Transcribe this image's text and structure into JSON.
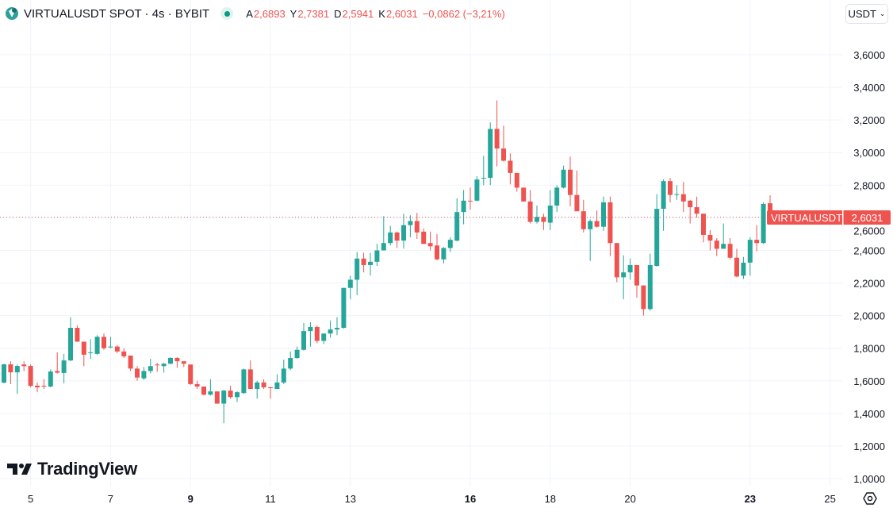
{
  "header": {
    "title": "VIRTUALUSDT SPOT · 4s · BYBIT",
    "ohlc": [
      {
        "key": "A",
        "value": "2,6893"
      },
      {
        "key": "Y",
        "value": "2,7381"
      },
      {
        "key": "D",
        "value": "2,5941"
      },
      {
        "key": "K",
        "value": "2,6031"
      }
    ],
    "change": "−0,0862 (−3,21%)",
    "status_icon": "market-open-dot"
  },
  "currency_select": {
    "value": "USDT",
    "icon": "chevron-down-icon"
  },
  "brand": {
    "name": "TradingView"
  },
  "price_label": {
    "symbol": "VIRTUALUSDT",
    "value": "2,6031"
  },
  "settings_icon": "gear-icon",
  "colors": {
    "up": "#26a69a",
    "down": "#ef5350",
    "grid": "#f0f3fa"
  },
  "chart_data": {
    "type": "candlestick",
    "title": "VIRTUALUSDT SPOT · 4s · BYBIT",
    "interval": "4h",
    "ylim": [
      1.0,
      3.6
    ],
    "y_ticks": [
      {
        "value": 3.6,
        "label": "3,6000"
      },
      {
        "value": 3.4,
        "label": "3,4000"
      },
      {
        "value": 3.2,
        "label": "3,2000"
      },
      {
        "value": 3.0,
        "label": "3,0000"
      },
      {
        "value": 2.8,
        "label": "2,8000"
      },
      {
        "value": 2.6,
        "label": "2,6000"
      },
      {
        "value": 2.4,
        "label": "2,4000"
      },
      {
        "value": 2.2,
        "label": "2,2000"
      },
      {
        "value": 2.0,
        "label": "2,0000"
      },
      {
        "value": 1.8,
        "label": "1,8000"
      },
      {
        "value": 1.6,
        "label": "1,6000"
      },
      {
        "value": 1.4,
        "label": "1,4000"
      },
      {
        "value": 1.2,
        "label": "1,2000"
      },
      {
        "value": 1.0,
        "label": "1,0000"
      }
    ],
    "x_ticks": [
      {
        "label": "5",
        "index": 4,
        "bold": false
      },
      {
        "label": "7",
        "index": 16,
        "bold": false
      },
      {
        "label": "9",
        "index": 28,
        "bold": true
      },
      {
        "label": "11",
        "index": 40,
        "bold": false
      },
      {
        "label": "13",
        "index": 52,
        "bold": false
      },
      {
        "label": "16",
        "index": 70,
        "bold": true
      },
      {
        "label": "18",
        "index": 82,
        "bold": false
      },
      {
        "label": "20",
        "index": 94,
        "bold": false
      },
      {
        "label": "23",
        "index": 112,
        "bold": true
      },
      {
        "label": "25",
        "index": 124,
        "bold": false
      }
    ],
    "last_price": 2.6031,
    "candles_format": [
      "open",
      "high",
      "low",
      "close"
    ],
    "candles": [
      [
        1.589,
        1.705,
        1.585,
        1.701
      ],
      [
        1.701,
        1.72,
        1.58,
        1.652
      ],
      [
        1.652,
        1.7,
        1.52,
        1.691
      ],
      [
        1.7,
        1.72,
        1.66,
        1.69
      ],
      [
        1.691,
        1.7,
        1.56,
        1.569
      ],
      [
        1.57,
        1.59,
        1.53,
        1.56
      ],
      [
        1.57,
        1.61,
        1.55,
        1.565
      ],
      [
        1.565,
        1.67,
        1.56,
        1.657
      ],
      [
        1.66,
        1.775,
        1.645,
        1.65
      ],
      [
        1.648,
        1.765,
        1.585,
        1.725
      ],
      [
        1.725,
        1.99,
        1.72,
        1.925
      ],
      [
        1.925,
        1.94,
        1.84,
        1.84
      ],
      [
        1.84,
        1.84,
        1.69,
        1.76
      ],
      [
        1.77,
        1.855,
        1.735,
        1.775
      ],
      [
        1.765,
        1.88,
        1.76,
        1.87
      ],
      [
        1.87,
        1.89,
        1.79,
        1.8
      ],
      [
        1.805,
        1.87,
        1.8,
        1.81
      ],
      [
        1.81,
        1.82,
        1.77,
        1.78
      ],
      [
        1.78,
        1.8,
        1.74,
        1.75
      ],
      [
        1.755,
        1.755,
        1.66,
        1.675
      ],
      [
        1.675,
        1.69,
        1.6,
        1.62
      ],
      [
        1.615,
        1.685,
        1.605,
        1.66
      ],
      [
        1.66,
        1.735,
        1.645,
        1.69
      ],
      [
        1.7,
        1.71,
        1.655,
        1.695
      ],
      [
        1.69,
        1.71,
        1.65,
        1.705
      ],
      [
        1.705,
        1.745,
        1.7,
        1.74
      ],
      [
        1.74,
        1.745,
        1.68,
        1.72
      ],
      [
        1.72,
        1.72,
        1.685,
        1.705
      ],
      [
        1.7,
        1.7,
        1.575,
        1.58
      ],
      [
        1.58,
        1.6,
        1.55,
        1.565
      ],
      [
        1.565,
        1.565,
        1.51,
        1.515
      ],
      [
        1.515,
        1.61,
        1.51,
        1.535
      ],
      [
        1.535,
        1.535,
        1.46,
        1.46
      ],
      [
        1.46,
        1.545,
        1.34,
        1.54
      ],
      [
        1.54,
        1.57,
        1.49,
        1.5
      ],
      [
        1.5,
        1.535,
        1.47,
        1.53
      ],
      [
        1.525,
        1.675,
        1.52,
        1.67
      ],
      [
        1.67,
        1.725,
        1.55,
        1.55
      ],
      [
        1.55,
        1.6,
        1.49,
        1.59
      ],
      [
        1.59,
        1.61,
        1.55,
        1.56
      ],
      [
        1.56,
        1.565,
        1.49,
        1.555
      ],
      [
        1.55,
        1.64,
        1.55,
        1.59
      ],
      [
        1.59,
        1.73,
        1.58,
        1.675
      ],
      [
        1.675,
        1.78,
        1.665,
        1.74
      ],
      [
        1.74,
        1.81,
        1.735,
        1.79
      ],
      [
        1.79,
        1.955,
        1.785,
        1.905
      ],
      [
        1.905,
        1.96,
        1.81,
        1.93
      ],
      [
        1.93,
        1.94,
        1.83,
        1.845
      ],
      [
        1.845,
        1.89,
        1.825,
        1.89
      ],
      [
        1.89,
        1.97,
        1.865,
        1.915
      ],
      [
        1.915,
        1.99,
        1.88,
        1.925
      ],
      [
        1.925,
        2.17,
        1.92,
        2.17
      ],
      [
        2.17,
        2.245,
        2.1,
        2.22
      ],
      [
        2.22,
        2.39,
        2.125,
        2.35
      ],
      [
        2.35,
        2.385,
        2.265,
        2.31
      ],
      [
        2.31,
        2.385,
        2.245,
        2.33
      ],
      [
        2.33,
        2.44,
        2.305,
        2.4
      ],
      [
        2.4,
        2.61,
        2.4,
        2.445
      ],
      [
        2.445,
        2.55,
        2.43,
        2.51
      ],
      [
        2.51,
        2.515,
        2.415,
        2.46
      ],
      [
        2.46,
        2.625,
        2.41,
        2.555
      ],
      [
        2.555,
        2.615,
        2.48,
        2.58
      ],
      [
        2.58,
        2.63,
        2.47,
        2.51
      ],
      [
        2.515,
        2.535,
        2.44,
        2.44
      ],
      [
        2.445,
        2.515,
        2.4,
        2.425
      ],
      [
        2.43,
        2.5,
        2.34,
        2.345
      ],
      [
        2.345,
        2.42,
        2.32,
        2.415
      ],
      [
        2.415,
        2.48,
        2.39,
        2.465
      ],
      [
        2.46,
        2.72,
        2.455,
        2.635
      ],
      [
        2.635,
        2.77,
        2.56,
        2.705
      ],
      [
        2.705,
        2.785,
        2.65,
        2.7
      ],
      [
        2.705,
        2.855,
        2.7,
        2.835
      ],
      [
        2.84,
        2.98,
        2.8,
        2.845
      ],
      [
        2.845,
        3.185,
        2.8,
        3.145
      ],
      [
        3.145,
        3.32,
        2.915,
        3.025
      ],
      [
        3.025,
        3.165,
        2.945,
        2.95
      ],
      [
        2.95,
        2.995,
        2.805,
        2.875
      ],
      [
        2.875,
        2.875,
        2.76,
        2.785
      ],
      [
        2.785,
        2.785,
        2.7,
        2.7
      ],
      [
        2.7,
        2.77,
        2.565,
        2.575
      ],
      [
        2.575,
        2.675,
        2.565,
        2.605
      ],
      [
        2.605,
        2.625,
        2.525,
        2.575
      ],
      [
        2.57,
        2.77,
        2.525,
        2.675
      ],
      [
        2.675,
        2.8,
        2.635,
        2.785
      ],
      [
        2.785,
        2.92,
        2.78,
        2.895
      ],
      [
        2.895,
        2.975,
        2.67,
        2.74
      ],
      [
        2.74,
        2.89,
        2.64,
        2.64
      ],
      [
        2.64,
        2.71,
        2.51,
        2.53
      ],
      [
        2.53,
        2.59,
        2.335,
        2.58
      ],
      [
        2.58,
        2.645,
        2.54,
        2.545
      ],
      [
        2.545,
        2.73,
        2.52,
        2.695
      ],
      [
        2.695,
        2.73,
        2.365,
        2.445
      ],
      [
        2.445,
        2.445,
        2.205,
        2.235
      ],
      [
        2.235,
        2.37,
        2.1,
        2.265
      ],
      [
        2.265,
        2.35,
        2.22,
        2.31
      ],
      [
        2.31,
        2.31,
        2.11,
        2.185
      ],
      [
        2.185,
        2.185,
        2.0,
        2.04
      ],
      [
        2.04,
        2.38,
        2.03,
        2.31
      ],
      [
        2.305,
        2.745,
        2.3,
        2.655
      ],
      [
        2.655,
        2.835,
        2.52,
        2.825
      ],
      [
        2.825,
        2.845,
        2.695,
        2.74
      ],
      [
        2.74,
        2.8,
        2.71,
        2.745
      ],
      [
        2.745,
        2.82,
        2.635,
        2.7
      ],
      [
        2.705,
        2.71,
        2.565,
        2.665
      ],
      [
        2.665,
        2.73,
        2.6,
        2.625
      ],
      [
        2.625,
        2.625,
        2.45,
        2.495
      ],
      [
        2.495,
        2.525,
        2.4,
        2.46
      ],
      [
        2.46,
        2.475,
        2.365,
        2.41
      ],
      [
        2.41,
        2.565,
        2.41,
        2.44
      ],
      [
        2.44,
        2.475,
        2.345,
        2.355
      ],
      [
        2.355,
        2.41,
        2.235,
        2.24
      ],
      [
        2.245,
        2.36,
        2.225,
        2.325
      ],
      [
        2.325,
        2.48,
        2.245,
        2.465
      ],
      [
        2.465,
        2.555,
        2.395,
        2.445
      ],
      [
        2.445,
        2.695,
        2.44,
        2.685
      ],
      [
        2.6893,
        2.7381,
        2.5941,
        2.6031
      ]
    ]
  }
}
